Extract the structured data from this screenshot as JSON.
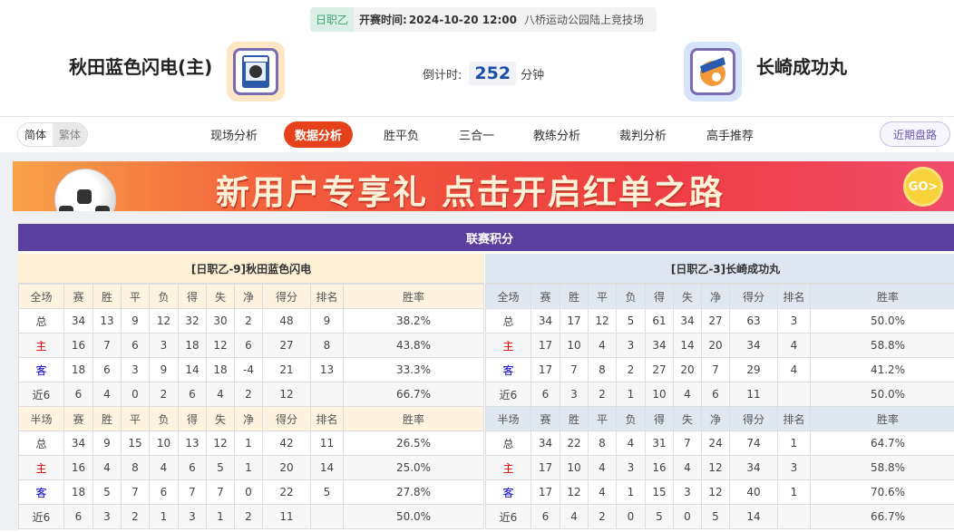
{
  "match": {
    "league": "日职乙",
    "kickoff_label": "开赛时间:",
    "kickoff": "2024-10-20 12:00",
    "venue": "八桥运动公园陆上竞技场",
    "home": "秋田蓝色闪电(主)",
    "away": "长崎成功丸",
    "countdown_label": "倒计时:",
    "countdown": "252",
    "countdown_unit": "分钟"
  },
  "nav": {
    "lang": [
      "简体",
      "繁体"
    ],
    "tabs": [
      "现场分析",
      "数据分析",
      "胜平负",
      "三合一",
      "教练分析",
      "裁判分析",
      "高手推荐"
    ],
    "active": "数据分析",
    "recent": "近期盘路"
  },
  "banner": {
    "text": "新用户专享礼 点击开启红单之路",
    "go": "GO>"
  },
  "colors": {
    "accent": "#e5421c",
    "title_bar": "#5b3f9e",
    "home": "#ee0000",
    "away": "#0000cc"
  },
  "standings": {
    "title": "联赛积分",
    "columns": [
      "赛",
      "胜",
      "平",
      "负",
      "得",
      "失",
      "净",
      "得分",
      "排名",
      "胜率"
    ],
    "full_label": "全场",
    "half_label": "半场",
    "home_team": {
      "header": "[日职乙-9]秋田蓝色闪电",
      "full": [
        [
          "总",
          "34",
          "13",
          "9",
          "12",
          "32",
          "30",
          "2",
          "48",
          "9",
          "38.2%"
        ],
        [
          "主",
          "16",
          "7",
          "6",
          "3",
          "18",
          "12",
          "6",
          "27",
          "8",
          "43.8%"
        ],
        [
          "客",
          "18",
          "6",
          "3",
          "9",
          "14",
          "18",
          "-4",
          "21",
          "13",
          "33.3%"
        ],
        [
          "近6",
          "6",
          "4",
          "0",
          "2",
          "6",
          "4",
          "2",
          "12",
          "",
          "66.7%"
        ]
      ],
      "half": [
        [
          "总",
          "34",
          "9",
          "15",
          "10",
          "13",
          "12",
          "1",
          "42",
          "11",
          "26.5%"
        ],
        [
          "主",
          "16",
          "4",
          "8",
          "4",
          "6",
          "5",
          "1",
          "20",
          "14",
          "25.0%"
        ],
        [
          "客",
          "18",
          "5",
          "7",
          "6",
          "7",
          "7",
          "0",
          "22",
          "5",
          "27.8%"
        ],
        [
          "近6",
          "6",
          "3",
          "2",
          "1",
          "3",
          "1",
          "2",
          "11",
          "",
          "50.0%"
        ]
      ]
    },
    "away_team": {
      "header": "[日职乙-3]长崎成功丸",
      "full": [
        [
          "总",
          "34",
          "17",
          "12",
          "5",
          "61",
          "34",
          "27",
          "63",
          "3",
          "50.0%"
        ],
        [
          "主",
          "17",
          "10",
          "4",
          "3",
          "34",
          "14",
          "20",
          "34",
          "4",
          "58.8%"
        ],
        [
          "客",
          "17",
          "7",
          "8",
          "2",
          "27",
          "20",
          "7",
          "29",
          "4",
          "41.2%"
        ],
        [
          "近6",
          "6",
          "3",
          "2",
          "1",
          "10",
          "4",
          "6",
          "11",
          "",
          "50.0%"
        ]
      ],
      "half": [
        [
          "总",
          "34",
          "22",
          "8",
          "4",
          "31",
          "7",
          "24",
          "74",
          "1",
          "64.7%"
        ],
        [
          "主",
          "17",
          "10",
          "4",
          "3",
          "16",
          "4",
          "12",
          "34",
          "3",
          "58.8%"
        ],
        [
          "客",
          "17",
          "12",
          "4",
          "1",
          "15",
          "3",
          "12",
          "40",
          "1",
          "70.6%"
        ],
        [
          "近6",
          "6",
          "4",
          "2",
          "0",
          "5",
          "0",
          "5",
          "14",
          "",
          "66.7%"
        ]
      ]
    }
  }
}
